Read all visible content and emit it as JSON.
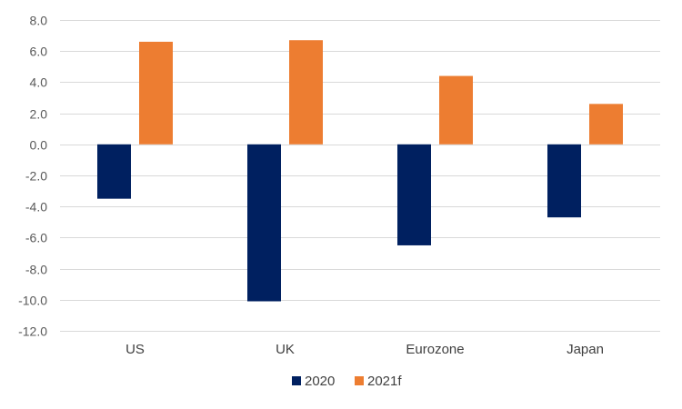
{
  "chart_data": {
    "type": "bar",
    "title": "",
    "xlabel": "",
    "ylabel": "",
    "categories": [
      "US",
      "UK",
      "Eurozone",
      "Japan"
    ],
    "series": [
      {
        "name": "2020",
        "values": [
          -3.5,
          -10.1,
          -6.5,
          -4.7
        ],
        "color": "#002060"
      },
      {
        "name": "2021f",
        "values": [
          6.6,
          6.7,
          4.4,
          2.6
        ],
        "color": "#ED7D31"
      }
    ],
    "ylim": [
      -12.0,
      8.0
    ],
    "yticks": [
      8.0,
      6.0,
      4.0,
      2.0,
      0.0,
      -2.0,
      -4.0,
      -6.0,
      -8.0,
      -10.0,
      -12.0
    ],
    "ytick_labels": [
      "8.0",
      "6.0",
      "4.0",
      "2.0",
      "0.0",
      "-2.0",
      "-4.0",
      "-6.0",
      "-8.0",
      "-10.0",
      "-12.0"
    ],
    "grid": true,
    "legend_position": "bottom-center",
    "colors": {
      "grid": "#D9D9D9",
      "axis_text": "#595959"
    }
  }
}
